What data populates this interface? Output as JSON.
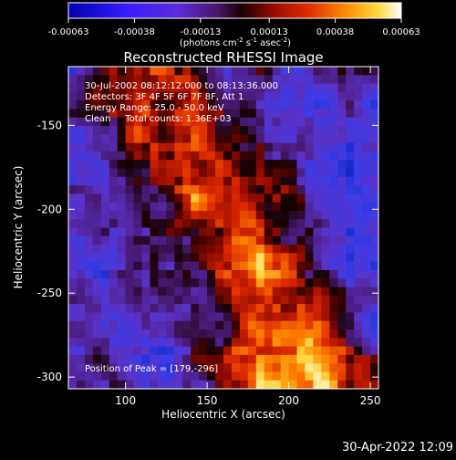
{
  "colorbar": {
    "tick_labels": [
      "-0.00063",
      "-0.00038",
      "-0.00013",
      "0.00013",
      "0.00038",
      "0.00063"
    ],
    "unit_parts": [
      "(photons cm",
      "-2",
      " s",
      "-1",
      " asec",
      "-2",
      ")"
    ],
    "range": [
      -0.00063,
      0.00063
    ]
  },
  "chart_data": {
    "type": "heatmap",
    "title": "Reconstructed RHESSI Image",
    "xlabel": "Heliocentric X (arcsec)",
    "ylabel": "Heliocentric Y (arcsec)",
    "xlim": [
      65,
      255
    ],
    "ylim": [
      -307,
      -115
    ],
    "xticks": [
      100,
      150,
      200,
      250
    ],
    "yticks": [
      -150,
      -200,
      -250,
      -300
    ],
    "annotations": [
      "30-Jul-2002 08:12:12.000 to 08:13:36.000",
      "Detectors: 3F 4F 5F 6F 7F 8F, Att 1",
      "Energy Range: 25.0 - 50.0 keV",
      "Clean     Total counts: 1.36E+03"
    ],
    "peak_label": "Position of Peak = [179,-296]",
    "peak": [
      179,
      -296
    ],
    "grid_cells": [
      38,
      38
    ]
  },
  "footer": {
    "timestamp": "30-Apr-2022 12:09"
  }
}
